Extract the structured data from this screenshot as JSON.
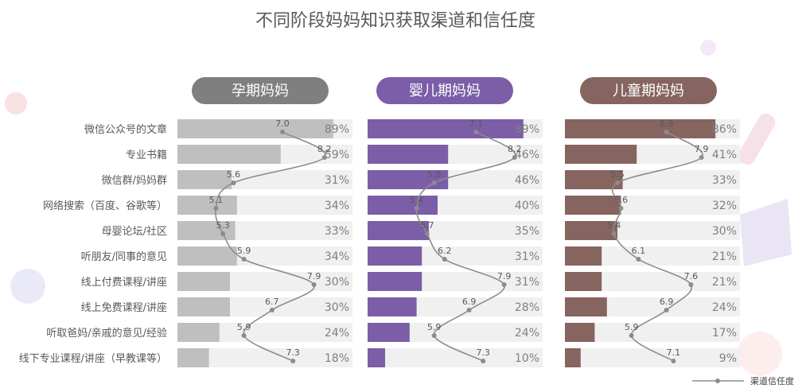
{
  "chart_data": {
    "type": "bar",
    "title": "不同阶段妈妈知识获取渠道和信任度",
    "categories": [
      "微信公众号的文章",
      "专业书籍",
      "微信群/妈妈群",
      "网络搜索（百度、谷歌等）",
      "母婴论坛/社区",
      "听朋友/同事的意见",
      "线上付费课程/讲座",
      "线上免费课程/讲座",
      "听取爸妈/亲戚的意见/经验",
      "线下专业课程/讲座（早教课等）"
    ],
    "xlim": [
      0,
      100
    ],
    "trust_lim": [
      4,
      9
    ],
    "legend": {
      "label": "渠道信任度",
      "position": "bottom-right"
    },
    "panels": [
      {
        "name": "孕期妈妈",
        "color": "#bfbfbf",
        "header_color": "#7f7f7f",
        "values": [
          89,
          59,
          31,
          34,
          33,
          34,
          30,
          30,
          24,
          18
        ],
        "trust": [
          7.0,
          8.2,
          5.6,
          5.1,
          5.3,
          5.9,
          7.9,
          6.7,
          5.9,
          7.3
        ]
      },
      {
        "name": "婴儿期妈妈",
        "color": "#7b5ea7",
        "header_color": "#7b5ea7",
        "values": [
          89,
          46,
          46,
          40,
          35,
          31,
          31,
          28,
          24,
          10
        ],
        "trust": [
          7.1,
          8.2,
          5.9,
          5.4,
          5.7,
          6.2,
          7.9,
          6.9,
          5.9,
          7.3
        ]
      },
      {
        "name": "儿童期妈妈",
        "color": "#866460",
        "header_color": "#866460",
        "values": [
          86,
          41,
          33,
          32,
          30,
          21,
          21,
          24,
          17,
          9
        ],
        "trust": [
          6.9,
          7.9,
          5.5,
          5.6,
          5.4,
          6.1,
          7.6,
          6.9,
          5.9,
          7.1
        ]
      }
    ]
  }
}
